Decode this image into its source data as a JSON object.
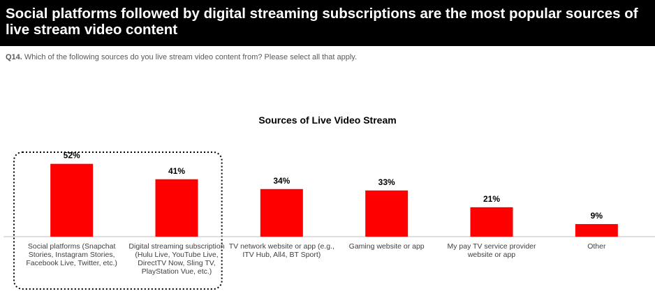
{
  "header": {
    "title": "Social platforms followed by digital streaming subscriptions are the most popular sources of live stream video content"
  },
  "question": {
    "code": "Q14.",
    "text": "Which of the following sources do you live stream video content from? Please select all that apply."
  },
  "colors": {
    "bar": "#ff0000",
    "header_bg": "#000000",
    "header_text": "#ffffff",
    "axis": "#bfbfbf",
    "highlight_border": "#000000"
  },
  "chart_data": {
    "type": "bar",
    "title": "Sources of Live Video Stream",
    "xlabel": "",
    "ylabel": "",
    "ylim": [
      0,
      60
    ],
    "grid": false,
    "legend": "none",
    "value_suffix": "%",
    "categories": [
      [
        "Social platforms (Snapchat",
        "Stories, Instagram Stories,",
        "Facebook Live, Twitter, etc.)"
      ],
      [
        "Digital streaming subscription",
        "(Hulu Live, YouTube Live,",
        "DirectTV Now, Sling TV,",
        "PlayStation Vue, etc.)"
      ],
      [
        "TV network website or app (e.g.,",
        "ITV Hub, All4, BT Sport)"
      ],
      [
        "Gaming website or app"
      ],
      [
        "My pay TV service provider",
        "website or app"
      ],
      [
        "Other"
      ]
    ],
    "values": [
      52,
      41,
      34,
      33,
      21,
      9
    ],
    "highlighted_categories": [
      0,
      1
    ]
  }
}
